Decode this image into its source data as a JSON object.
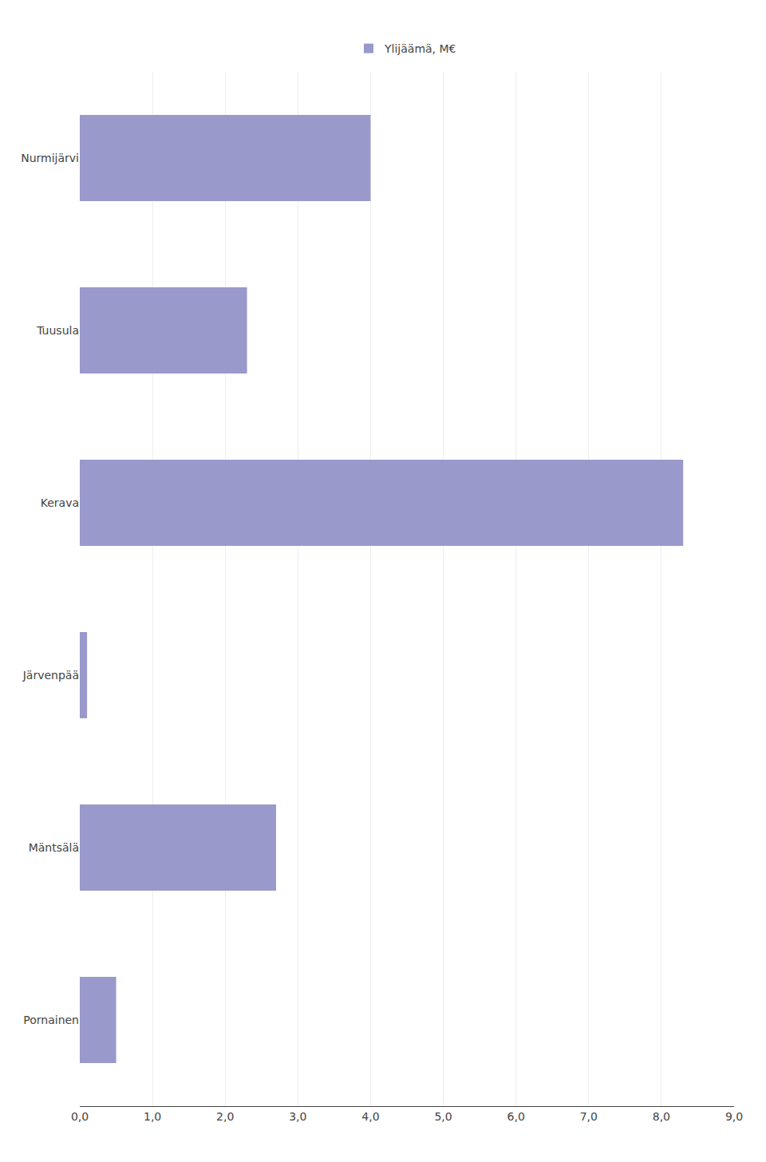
{
  "chart_data": {
    "type": "bar",
    "orientation": "horizontal",
    "categories": [
      "Pornainen",
      "Mäntsälä",
      "Järvenpää",
      "Kerava",
      "Tuusula",
      "Nurmijärvi"
    ],
    "series": [
      {
        "name": "Ylijäämä, M€",
        "color": "#9999cc",
        "values": [
          0.5,
          2.7,
          0.1,
          8.3,
          2.3,
          4.0
        ]
      }
    ],
    "xlim": [
      0,
      9.0
    ],
    "xticks": [
      {
        "value": 0.0,
        "label": "0,0"
      },
      {
        "value": 1.0,
        "label": "1,0"
      },
      {
        "value": 2.0,
        "label": "2,0"
      },
      {
        "value": 3.0,
        "label": "3,0"
      },
      {
        "value": 4.0,
        "label": "4,0"
      },
      {
        "value": 5.0,
        "label": "5,0"
      },
      {
        "value": 6.0,
        "label": "6,0"
      },
      {
        "value": 7.0,
        "label": "7,0"
      },
      {
        "value": 8.0,
        "label": "8,0"
      },
      {
        "value": 9.0,
        "label": "9,0"
      }
    ],
    "grid": true,
    "legend": "top"
  }
}
